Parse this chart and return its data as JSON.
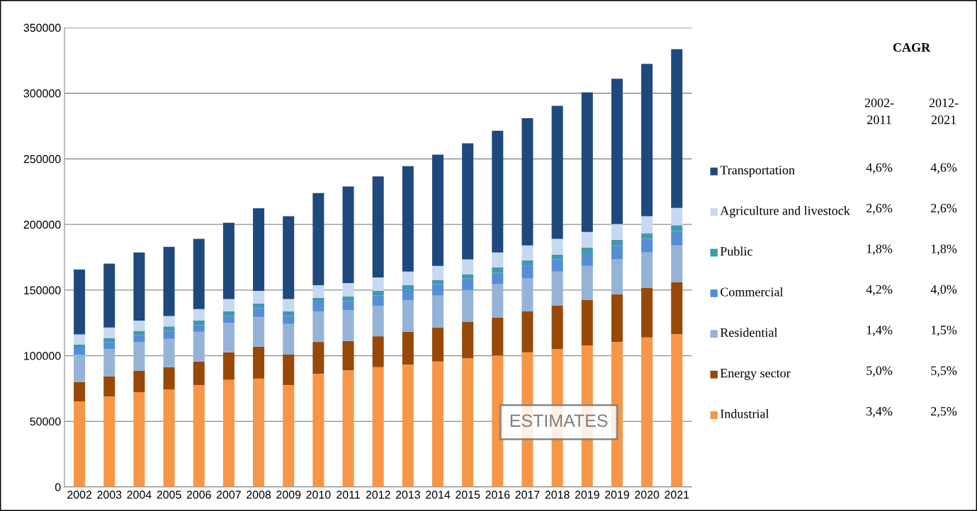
{
  "chart_data": {
    "type": "bar",
    "stacked": true,
    "categories": [
      "2002",
      "2003",
      "2004",
      "2005",
      "2006",
      "2007",
      "2008",
      "2009",
      "2010",
      "2011",
      "2012",
      "2013",
      "2014",
      "2015",
      "2016",
      "2017",
      "2018",
      "2019",
      "2019",
      "2020",
      "2021"
    ],
    "series": [
      {
        "name": "Industrial",
        "color": "#f79646",
        "values": [
          65300,
          68900,
          72300,
          74200,
          77600,
          81700,
          82600,
          77600,
          86200,
          88900,
          91300,
          93200,
          95600,
          98200,
          100200,
          102600,
          105200,
          107900,
          110500,
          113900,
          116500
        ]
      },
      {
        "name": "Energy sector",
        "color": "#984807",
        "values": [
          14700,
          15400,
          16300,
          17100,
          18000,
          20900,
          24300,
          23300,
          24300,
          22300,
          23500,
          25000,
          25900,
          27700,
          29000,
          31200,
          32900,
          34500,
          36300,
          37900,
          39600
        ]
      },
      {
        "name": "Residential",
        "color": "#95b3d7",
        "values": [
          20900,
          20900,
          21700,
          21600,
          22600,
          22300,
          22600,
          23300,
          23300,
          23600,
          23300,
          24200,
          24300,
          24200,
          25300,
          25000,
          26000,
          26000,
          26600,
          26900,
          27900
        ]
      },
      {
        "name": "Commercial",
        "color": "#558ed5",
        "values": [
          5300,
          5300,
          5200,
          6000,
          5000,
          5300,
          6700,
          6000,
          7000,
          6900,
          7700,
          7700,
          8700,
          8700,
          8600,
          9600,
          9300,
          9600,
          10400,
          10300,
          11000
        ]
      },
      {
        "name": "Public",
        "color": "#4198af",
        "values": [
          2400,
          3100,
          3400,
          3400,
          3600,
          3600,
          3600,
          3600,
          3300,
          3400,
          3600,
          3600,
          3300,
          3300,
          4300,
          4300,
          3600,
          4300,
          4500,
          4400,
          4400
        ]
      },
      {
        "name": "Agriculture and livestock",
        "color": "#c6d9f1",
        "values": [
          7700,
          7900,
          7900,
          7900,
          8700,
          9400,
          9600,
          9400,
          9600,
          10300,
          10300,
          10400,
          10600,
          11300,
          11300,
          11300,
          12000,
          12000,
          12000,
          12900,
          13200
        ]
      },
      {
        "name": "Transportation",
        "color": "#1f497d",
        "values": [
          49400,
          48600,
          51900,
          52800,
          53500,
          58100,
          62900,
          63100,
          70200,
          73500,
          76900,
          80400,
          84800,
          88400,
          92700,
          97000,
          101400,
          106400,
          110800,
          116100,
          121000
        ]
      }
    ],
    "ylim": [
      0,
      350000
    ],
    "yticks": [
      0,
      50000,
      100000,
      150000,
      200000,
      250000,
      300000,
      350000
    ],
    "grid": "y",
    "legend": "right",
    "annotations": [
      "CAGR",
      "2002-\n2011",
      "2012-\n2021",
      "4,6%",
      "4,6%",
      "2,6%",
      "2,6%",
      "1,8%",
      "1,8%",
      "4,2%",
      "4,0%",
      "1,4%",
      "1,5%",
      "5,0%",
      "5,5%",
      "3,4%",
      "2,5%",
      "ESTIMATES"
    ]
  }
}
